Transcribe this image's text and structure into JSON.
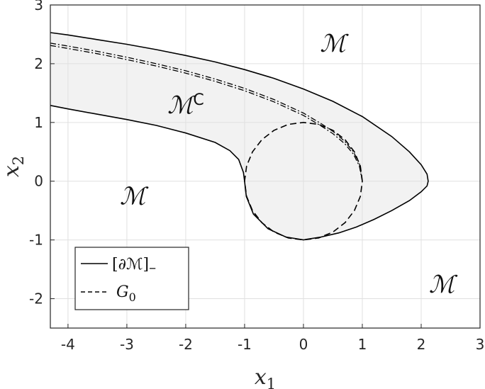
{
  "chart_data": {
    "type": "line",
    "title": "",
    "xlabel": {
      "main": "x",
      "sub": "1"
    },
    "ylabel": {
      "main": "x",
      "sub": "2"
    },
    "xlim": [
      -4.3,
      3
    ],
    "ylim": [
      -2.5,
      3
    ],
    "xticks": [
      -4,
      -3,
      -2,
      -1,
      0,
      1,
      2,
      3
    ],
    "yticks": [
      3,
      2,
      1,
      0,
      -1,
      -2
    ],
    "xtick_labels": [
      "-4",
      "-3",
      "-2",
      "-1",
      "0",
      "1",
      "2",
      "3"
    ],
    "ytick_labels": [
      "3",
      "2",
      "1",
      "0",
      "-1",
      "-2"
    ],
    "grid": true,
    "legend_position": "bottom-left",
    "region_labels": [
      {
        "text": "ℳ",
        "sup": "",
        "x": 0.5,
        "y": 2.35
      },
      {
        "text": "ℳ",
        "sup": "C",
        "x": -2.0,
        "y": 1.3
      },
      {
        "text": "ℳ",
        "sup": "",
        "x": -2.9,
        "y": -0.25
      },
      {
        "text": "ℳ",
        "sup": "",
        "x": 2.35,
        "y": -1.75
      }
    ],
    "series": [
      {
        "name": "[∂ℳ]₋",
        "style": "solid",
        "color": "#000000",
        "x": [
          -4.3,
          -4.0,
          -3.5,
          -3.0,
          -2.5,
          -2.0,
          -1.5,
          -1.0,
          -0.5,
          0.0,
          0.5,
          1.0,
          1.5,
          1.8,
          2.0,
          2.1,
          2.12,
          2.1,
          2.0,
          1.8,
          1.5,
          1.2,
          0.9,
          0.6,
          0.3,
          0.05,
          0.0,
          -0.3,
          -0.6,
          -0.85,
          -0.97,
          -1.0,
          -1.02,
          -1.1,
          -1.25,
          -1.5,
          -2.0,
          -2.5,
          -3.0,
          -3.5,
          -4.0,
          -4.3
        ],
        "y": [
          2.53,
          2.49,
          2.41,
          2.33,
          2.24,
          2.14,
          2.03,
          1.9,
          1.75,
          1.57,
          1.36,
          1.1,
          0.76,
          0.5,
          0.28,
          0.12,
          0.0,
          -0.08,
          -0.18,
          -0.33,
          -0.5,
          -0.65,
          -0.78,
          -0.88,
          -0.95,
          -0.99,
          -1.0,
          -0.95,
          -0.81,
          -0.56,
          -0.26,
          0.0,
          0.15,
          0.37,
          0.52,
          0.66,
          0.82,
          0.95,
          1.05,
          1.14,
          1.23,
          1.29
        ]
      },
      {
        "name": "G₀",
        "style": "dashed",
        "color": "#000000",
        "x": [
          1.0,
          0.966,
          0.866,
          0.707,
          0.5,
          0.259,
          0.0,
          -0.259,
          -0.5,
          -0.707,
          -0.866,
          -0.966,
          -1.0,
          -0.966,
          -0.866,
          -0.707,
          -0.5,
          -0.259,
          0.0,
          0.259,
          0.5,
          0.707,
          0.866,
          0.966,
          1.0
        ],
        "y": [
          0.0,
          0.259,
          0.5,
          0.707,
          0.866,
          0.966,
          1.0,
          0.966,
          0.866,
          0.707,
          0.5,
          0.259,
          0.0,
          -0.259,
          -0.5,
          -0.707,
          -0.866,
          -0.966,
          -1.0,
          -0.966,
          -0.866,
          -0.707,
          -0.5,
          -0.259,
          0.0
        ]
      },
      {
        "name": "",
        "style": "dashdot",
        "color": "#000000",
        "x": [
          -4.3,
          -4.0,
          -3.5,
          -3.0,
          -2.5,
          -2.0,
          -1.5,
          -1.0,
          -0.5,
          0.0,
          0.3,
          0.5,
          0.7,
          0.85,
          0.95,
          1.0
        ],
        "y": [
          2.35,
          2.3,
          2.21,
          2.11,
          2.0,
          1.88,
          1.74,
          1.58,
          1.39,
          1.16,
          0.98,
          0.85,
          0.68,
          0.5,
          0.3,
          0.0
        ]
      },
      {
        "name": "",
        "style": "dashdot",
        "color": "#000000",
        "x": [
          -4.3,
          -4.0,
          -3.5,
          -3.0,
          -2.5,
          -2.0,
          -1.5,
          -1.0,
          -0.5,
          0.0,
          0.3,
          0.5,
          0.7,
          0.85,
          0.95,
          1.0
        ],
        "y": [
          2.31,
          2.26,
          2.17,
          2.07,
          1.96,
          1.84,
          1.7,
          1.54,
          1.35,
          1.12,
          0.94,
          0.81,
          0.64,
          0.46,
          0.26,
          0.0
        ]
      }
    ]
  },
  "legend": {
    "items": [
      {
        "label_main": "[∂ℳ]",
        "label_sub": "–",
        "style": "solid"
      },
      {
        "label_main": "G",
        "label_sub": "0",
        "style": "dashed"
      }
    ]
  },
  "colors": {
    "fill": "#f2f2f2",
    "grid": "#e0e0e0",
    "axis": "#262626",
    "line": "#000000"
  }
}
